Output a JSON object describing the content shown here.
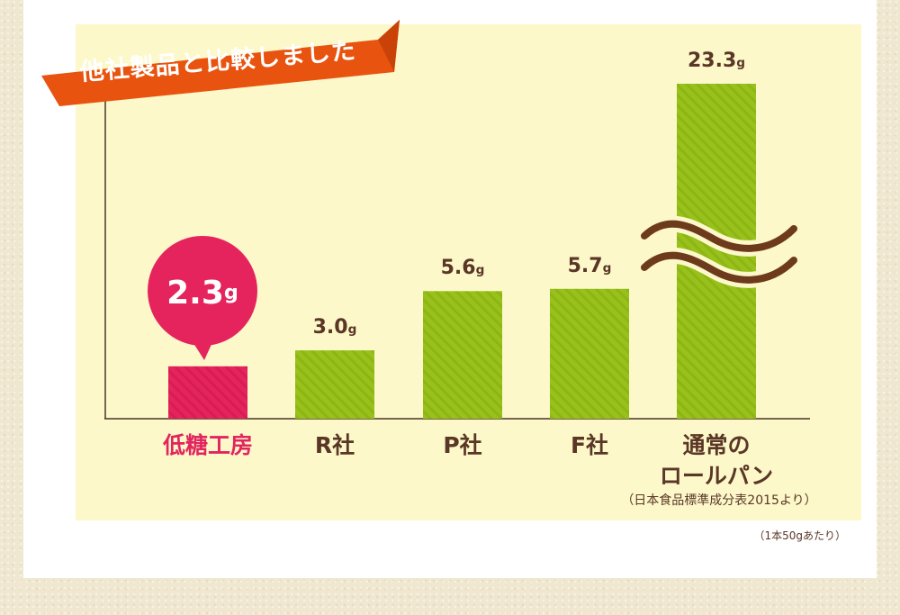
{
  "heading": "他社製品と比較しました",
  "note_source": "（日本食品標準成分表2015より）",
  "note_per": "（1本50gあたり）",
  "colors": {
    "highlight": "#e5245e",
    "bar_green": "#98c11c",
    "ribbon": "#e8540f",
    "text_brown": "#5a3626",
    "break_brown": "#6e3a1c",
    "panel": "#fcf8c9"
  },
  "chart_data": {
    "type": "bar",
    "unit": "g",
    "categories": [
      "低糖工房",
      "R社",
      "P社",
      "F社",
      "通常のロールパン"
    ],
    "category_lines": [
      [
        "低糖工房"
      ],
      [
        "R社"
      ],
      [
        "P社"
      ],
      [
        "F社"
      ],
      [
        "通常の",
        "ロールパン"
      ]
    ],
    "values": [
      2.3,
      3.0,
      5.6,
      5.7,
      23.3
    ],
    "value_labels": [
      "2.3",
      "3.0",
      "5.6",
      "5.7",
      "23.3"
    ],
    "highlight_index": 0,
    "axis_break": true,
    "axis_break_category_index": 4,
    "grid": false
  }
}
